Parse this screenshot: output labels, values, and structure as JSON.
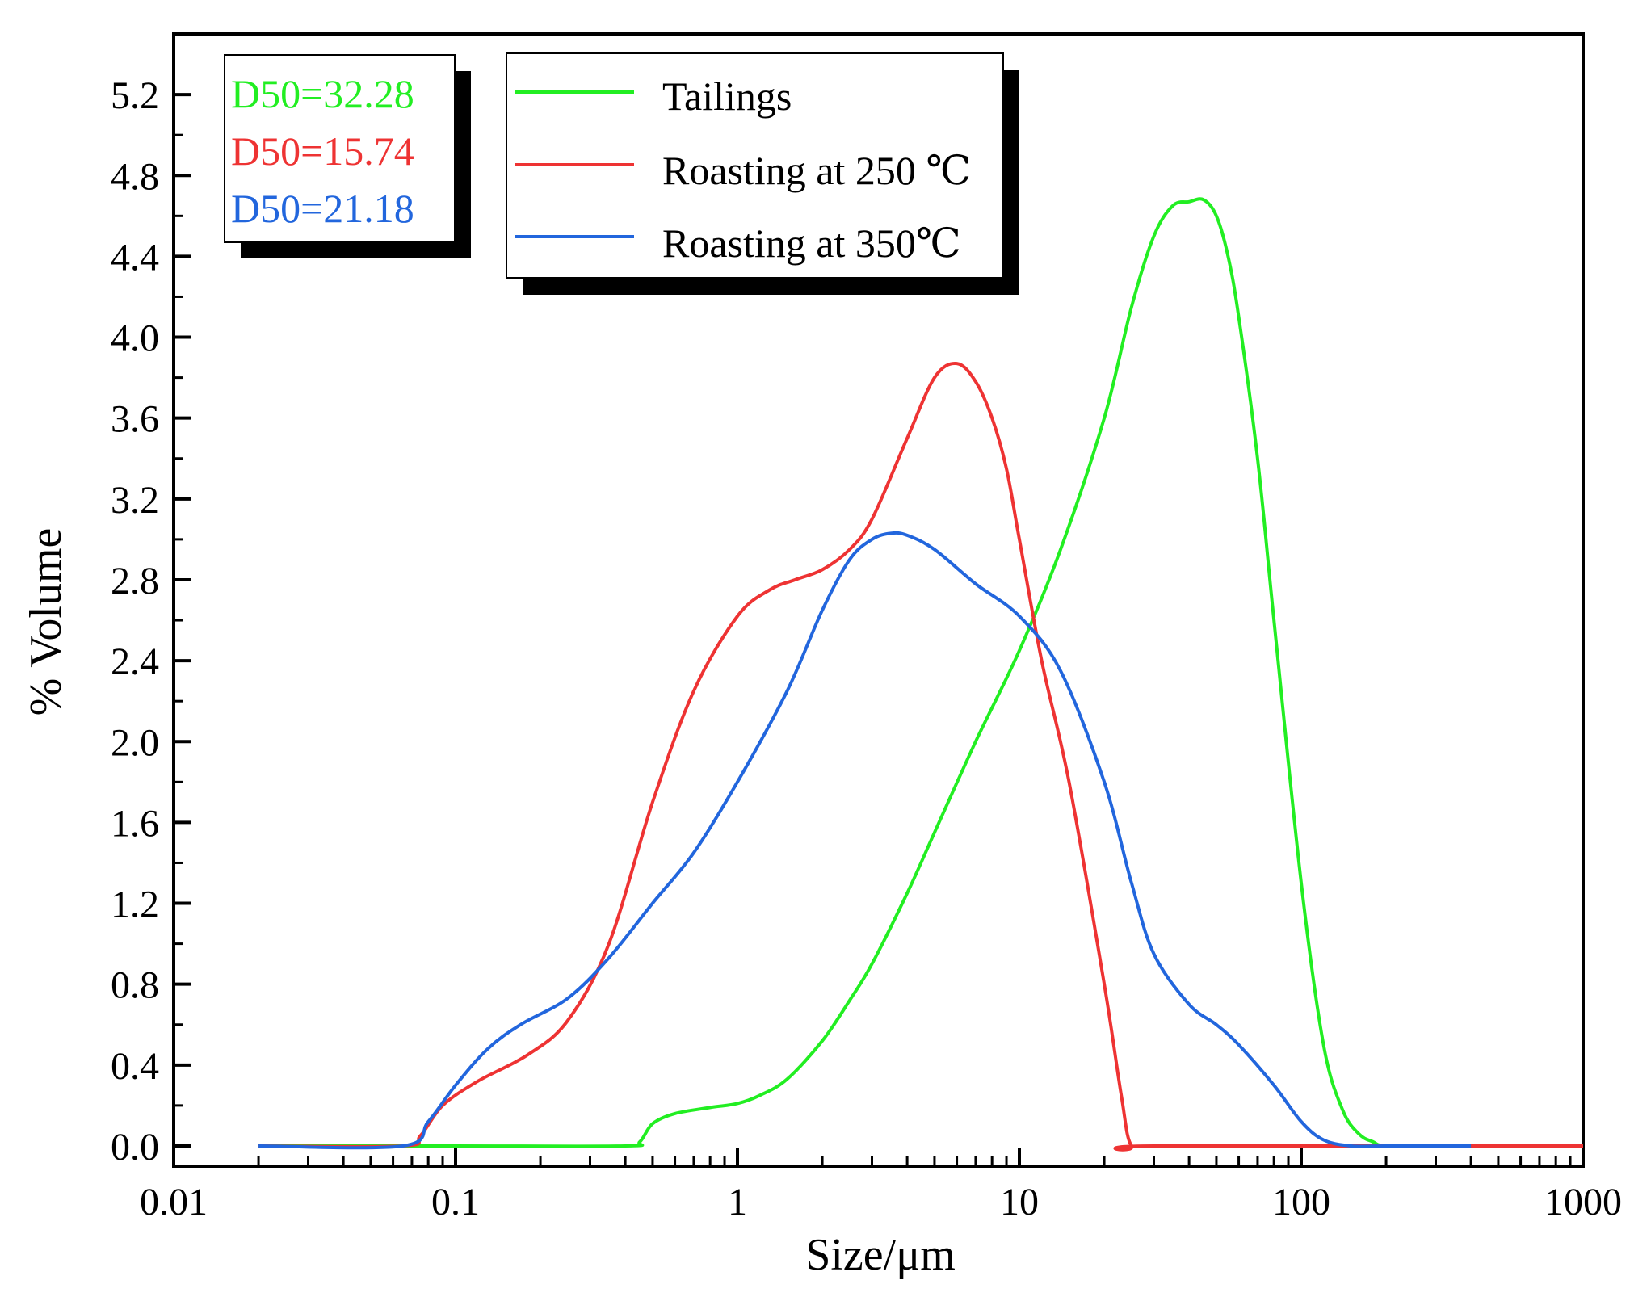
{
  "chart_data": {
    "type": "line",
    "title": "",
    "xlabel": "Size/μm",
    "ylabel": "% Volume",
    "xscale": "log",
    "xlim": [
      0.01,
      1000
    ],
    "ylim": [
      -0.1,
      5.5
    ],
    "x_ticks": [
      {
        "value": 0.01,
        "label": "0.01"
      },
      {
        "value": 0.1,
        "label": "0.1"
      },
      {
        "value": 1,
        "label": "1"
      },
      {
        "value": 10,
        "label": "10"
      },
      {
        "value": 100,
        "label": "100"
      },
      {
        "value": 1000,
        "label": "1000"
      }
    ],
    "y_ticks": [
      {
        "value": 0.0,
        "label": "0.0"
      },
      {
        "value": 0.4,
        "label": "0.4"
      },
      {
        "value": 0.8,
        "label": "0.8"
      },
      {
        "value": 1.2,
        "label": "1.2"
      },
      {
        "value": 1.6,
        "label": "1.6"
      },
      {
        "value": 2.0,
        "label": "2.0"
      },
      {
        "value": 2.4,
        "label": "2.4"
      },
      {
        "value": 2.8,
        "label": "2.8"
      },
      {
        "value": 3.2,
        "label": "3.2"
      },
      {
        "value": 3.6,
        "label": "3.6"
      },
      {
        "value": 4.0,
        "label": "4.0"
      },
      {
        "value": 4.4,
        "label": "4.4"
      },
      {
        "value": 4.8,
        "label": "4.8"
      },
      {
        "value": 5.2,
        "label": "5.2"
      }
    ],
    "legend_position": "top-center",
    "series": [
      {
        "name": "Tailings",
        "color": "#22ee22",
        "x": [
          0.02,
          0.1,
          0.4,
          0.45,
          0.5,
          0.6,
          0.8,
          1.0,
          1.2,
          1.5,
          2.0,
          2.5,
          3.0,
          4.0,
          5.0,
          7.0,
          10.0,
          14.0,
          20.0,
          25.0,
          30.0,
          35.0,
          40.0,
          45.0,
          50.0,
          55.0,
          60.0,
          70.0,
          80.0,
          100.0,
          120.0,
          140.0,
          160.0,
          180.0,
          200.0,
          300.0,
          1000.0
        ],
        "values": [
          0,
          0,
          0,
          0.02,
          0.11,
          0.16,
          0.19,
          0.21,
          0.25,
          0.33,
          0.52,
          0.72,
          0.9,
          1.25,
          1.55,
          2.0,
          2.45,
          2.95,
          3.6,
          4.15,
          4.5,
          4.65,
          4.67,
          4.68,
          4.6,
          4.4,
          4.1,
          3.4,
          2.6,
          1.3,
          0.5,
          0.18,
          0.06,
          0.02,
          0,
          0,
          0
        ]
      },
      {
        "name": "Roasting at 250 ℃",
        "color": "#ee3333",
        "x": [
          0.02,
          0.065,
          0.075,
          0.09,
          0.12,
          0.18,
          0.25,
          0.35,
          0.5,
          0.7,
          1.0,
          1.3,
          1.6,
          2.0,
          2.5,
          3.0,
          4.0,
          5.0,
          6.0,
          7.0,
          8.0,
          9.0,
          10.0,
          12.0,
          15.0,
          20.0,
          23.0,
          25.0,
          30.0,
          1000.0
        ],
        "values": [
          0,
          0,
          0.05,
          0.2,
          0.32,
          0.45,
          0.62,
          1.0,
          1.7,
          2.25,
          2.62,
          2.75,
          2.8,
          2.85,
          2.95,
          3.1,
          3.5,
          3.8,
          3.87,
          3.78,
          3.6,
          3.35,
          3.0,
          2.4,
          1.8,
          0.8,
          0.25,
          0.0,
          0,
          0
        ]
      },
      {
        "name": "Roasting at 350℃",
        "color": "#2266dd",
        "x": [
          0.02,
          0.065,
          0.08,
          0.1,
          0.13,
          0.17,
          0.25,
          0.35,
          0.5,
          0.7,
          1.0,
          1.5,
          2.0,
          2.5,
          3.0,
          3.5,
          4.0,
          5.0,
          7.0,
          10.0,
          14.0,
          20.0,
          25.0,
          30.0,
          40.0,
          50.0,
          60.0,
          80.0,
          100.0,
          120.0,
          150.0,
          200.0,
          400.0
        ],
        "values": [
          0,
          0,
          0.12,
          0.3,
          0.48,
          0.6,
          0.73,
          0.93,
          1.2,
          1.45,
          1.8,
          2.25,
          2.65,
          2.9,
          3.0,
          3.03,
          3.02,
          2.95,
          2.78,
          2.62,
          2.35,
          1.8,
          1.3,
          0.95,
          0.7,
          0.6,
          0.5,
          0.3,
          0.12,
          0.03,
          0,
          0,
          0
        ]
      }
    ],
    "legend": {
      "entries": [
        "Tailings",
        "Roasting at 250 ℃",
        "Roasting at 350℃"
      ]
    },
    "annotations": [
      {
        "text": "D50=32.28",
        "color": "#22ee22"
      },
      {
        "text": "D50=15.74",
        "color": "#ee3333"
      },
      {
        "text": "D50=21.18",
        "color": "#2266dd"
      }
    ]
  }
}
